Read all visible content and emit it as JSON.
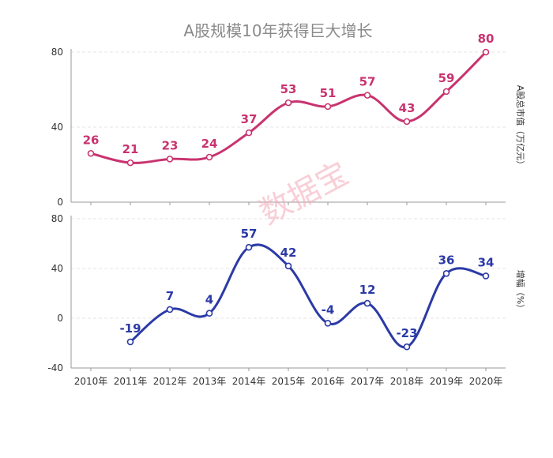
{
  "chart_data": [
    {
      "type": "line",
      "title": "A股规模10年获得巨大增长",
      "ylabel": "A股总市值（万亿元）",
      "categories": [
        "2010年",
        "2011年",
        "2012年",
        "2013年",
        "2014年",
        "2015年",
        "2016年",
        "2017年",
        "2018年",
        "2019年",
        "2020年"
      ],
      "series": [
        {
          "values": [
            26,
            21,
            23,
            24,
            37,
            53,
            51,
            57,
            43,
            59,
            80
          ]
        }
      ],
      "ylim": [
        0,
        80
      ],
      "yticks": [
        0,
        40,
        80
      ],
      "color": "#c8336f",
      "grid": true
    },
    {
      "type": "line",
      "ylabel": "增幅（%）",
      "categories": [
        "2010年",
        "2011年",
        "2012年",
        "2013年",
        "2014年",
        "2015年",
        "2016年",
        "2017年",
        "2018年",
        "2019年",
        "2020年"
      ],
      "series": [
        {
          "values": [
            null,
            -19,
            7,
            4,
            57,
            42,
            -4,
            12,
            -23,
            36,
            34
          ]
        }
      ],
      "ylim": [
        -40,
        80
      ],
      "yticks": [
        -40,
        0,
        40,
        80
      ],
      "color": "#2b3aa6",
      "grid": true
    }
  ],
  "watermark": "数据宝"
}
